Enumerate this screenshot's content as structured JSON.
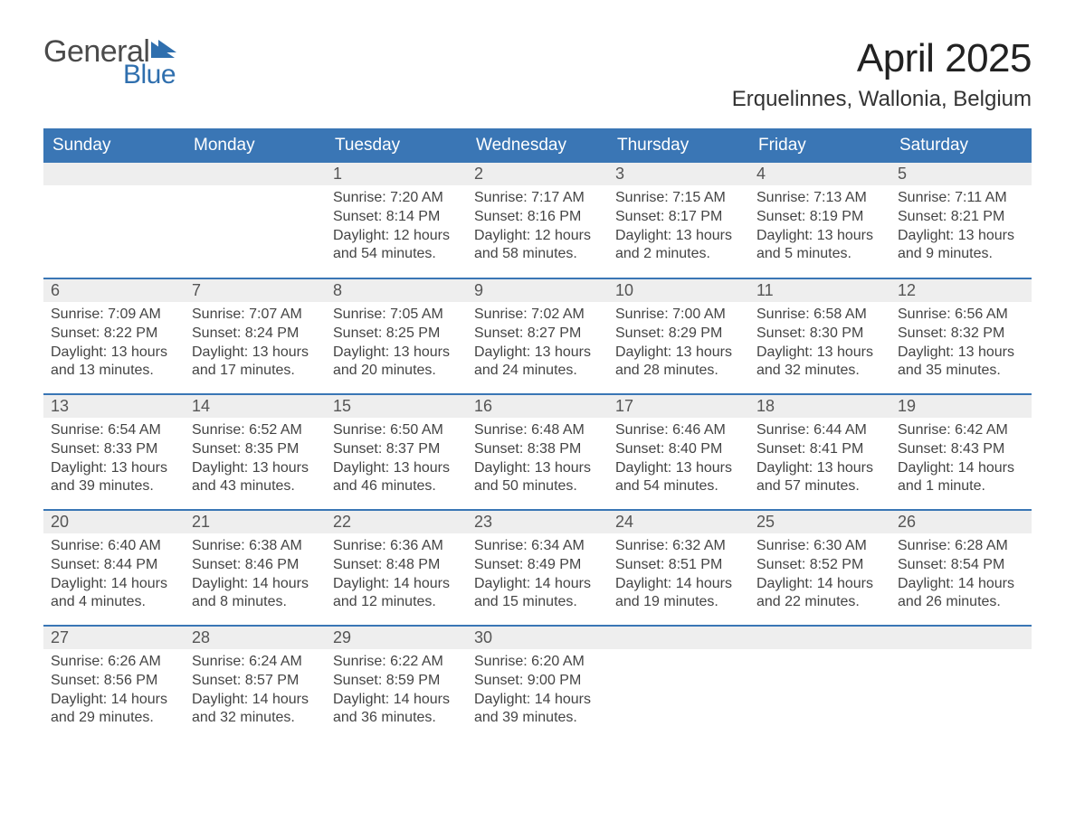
{
  "logo": {
    "word1": "General",
    "word2": "Blue",
    "flag_color": "#2f6fae"
  },
  "title": "April 2025",
  "location": "Erquelinnes, Wallonia, Belgium",
  "colors": {
    "header_bg": "#3a76b5",
    "header_text": "#ffffff",
    "daynum_bg": "#eeeeee",
    "row_divider": "#3a76b5",
    "body_text": "#444444"
  },
  "typography": {
    "title_fontsize": 44,
    "location_fontsize": 24,
    "header_fontsize": 19,
    "daynum_fontsize": 18,
    "body_fontsize": 16
  },
  "day_headers": [
    "Sunday",
    "Monday",
    "Tuesday",
    "Wednesday",
    "Thursday",
    "Friday",
    "Saturday"
  ],
  "weeks": [
    [
      null,
      null,
      {
        "n": "1",
        "sunrise": "Sunrise: 7:20 AM",
        "sunset": "Sunset: 8:14 PM",
        "daylight": "Daylight: 12 hours and 54 minutes."
      },
      {
        "n": "2",
        "sunrise": "Sunrise: 7:17 AM",
        "sunset": "Sunset: 8:16 PM",
        "daylight": "Daylight: 12 hours and 58 minutes."
      },
      {
        "n": "3",
        "sunrise": "Sunrise: 7:15 AM",
        "sunset": "Sunset: 8:17 PM",
        "daylight": "Daylight: 13 hours and 2 minutes."
      },
      {
        "n": "4",
        "sunrise": "Sunrise: 7:13 AM",
        "sunset": "Sunset: 8:19 PM",
        "daylight": "Daylight: 13 hours and 5 minutes."
      },
      {
        "n": "5",
        "sunrise": "Sunrise: 7:11 AM",
        "sunset": "Sunset: 8:21 PM",
        "daylight": "Daylight: 13 hours and 9 minutes."
      }
    ],
    [
      {
        "n": "6",
        "sunrise": "Sunrise: 7:09 AM",
        "sunset": "Sunset: 8:22 PM",
        "daylight": "Daylight: 13 hours and 13 minutes."
      },
      {
        "n": "7",
        "sunrise": "Sunrise: 7:07 AM",
        "sunset": "Sunset: 8:24 PM",
        "daylight": "Daylight: 13 hours and 17 minutes."
      },
      {
        "n": "8",
        "sunrise": "Sunrise: 7:05 AM",
        "sunset": "Sunset: 8:25 PM",
        "daylight": "Daylight: 13 hours and 20 minutes."
      },
      {
        "n": "9",
        "sunrise": "Sunrise: 7:02 AM",
        "sunset": "Sunset: 8:27 PM",
        "daylight": "Daylight: 13 hours and 24 minutes."
      },
      {
        "n": "10",
        "sunrise": "Sunrise: 7:00 AM",
        "sunset": "Sunset: 8:29 PM",
        "daylight": "Daylight: 13 hours and 28 minutes."
      },
      {
        "n": "11",
        "sunrise": "Sunrise: 6:58 AM",
        "sunset": "Sunset: 8:30 PM",
        "daylight": "Daylight: 13 hours and 32 minutes."
      },
      {
        "n": "12",
        "sunrise": "Sunrise: 6:56 AM",
        "sunset": "Sunset: 8:32 PM",
        "daylight": "Daylight: 13 hours and 35 minutes."
      }
    ],
    [
      {
        "n": "13",
        "sunrise": "Sunrise: 6:54 AM",
        "sunset": "Sunset: 8:33 PM",
        "daylight": "Daylight: 13 hours and 39 minutes."
      },
      {
        "n": "14",
        "sunrise": "Sunrise: 6:52 AM",
        "sunset": "Sunset: 8:35 PM",
        "daylight": "Daylight: 13 hours and 43 minutes."
      },
      {
        "n": "15",
        "sunrise": "Sunrise: 6:50 AM",
        "sunset": "Sunset: 8:37 PM",
        "daylight": "Daylight: 13 hours and 46 minutes."
      },
      {
        "n": "16",
        "sunrise": "Sunrise: 6:48 AM",
        "sunset": "Sunset: 8:38 PM",
        "daylight": "Daylight: 13 hours and 50 minutes."
      },
      {
        "n": "17",
        "sunrise": "Sunrise: 6:46 AM",
        "sunset": "Sunset: 8:40 PM",
        "daylight": "Daylight: 13 hours and 54 minutes."
      },
      {
        "n": "18",
        "sunrise": "Sunrise: 6:44 AM",
        "sunset": "Sunset: 8:41 PM",
        "daylight": "Daylight: 13 hours and 57 minutes."
      },
      {
        "n": "19",
        "sunrise": "Sunrise: 6:42 AM",
        "sunset": "Sunset: 8:43 PM",
        "daylight": "Daylight: 14 hours and 1 minute."
      }
    ],
    [
      {
        "n": "20",
        "sunrise": "Sunrise: 6:40 AM",
        "sunset": "Sunset: 8:44 PM",
        "daylight": "Daylight: 14 hours and 4 minutes."
      },
      {
        "n": "21",
        "sunrise": "Sunrise: 6:38 AM",
        "sunset": "Sunset: 8:46 PM",
        "daylight": "Daylight: 14 hours and 8 minutes."
      },
      {
        "n": "22",
        "sunrise": "Sunrise: 6:36 AM",
        "sunset": "Sunset: 8:48 PM",
        "daylight": "Daylight: 14 hours and 12 minutes."
      },
      {
        "n": "23",
        "sunrise": "Sunrise: 6:34 AM",
        "sunset": "Sunset: 8:49 PM",
        "daylight": "Daylight: 14 hours and 15 minutes."
      },
      {
        "n": "24",
        "sunrise": "Sunrise: 6:32 AM",
        "sunset": "Sunset: 8:51 PM",
        "daylight": "Daylight: 14 hours and 19 minutes."
      },
      {
        "n": "25",
        "sunrise": "Sunrise: 6:30 AM",
        "sunset": "Sunset: 8:52 PM",
        "daylight": "Daylight: 14 hours and 22 minutes."
      },
      {
        "n": "26",
        "sunrise": "Sunrise: 6:28 AM",
        "sunset": "Sunset: 8:54 PM",
        "daylight": "Daylight: 14 hours and 26 minutes."
      }
    ],
    [
      {
        "n": "27",
        "sunrise": "Sunrise: 6:26 AM",
        "sunset": "Sunset: 8:56 PM",
        "daylight": "Daylight: 14 hours and 29 minutes."
      },
      {
        "n": "28",
        "sunrise": "Sunrise: 6:24 AM",
        "sunset": "Sunset: 8:57 PM",
        "daylight": "Daylight: 14 hours and 32 minutes."
      },
      {
        "n": "29",
        "sunrise": "Sunrise: 6:22 AM",
        "sunset": "Sunset: 8:59 PM",
        "daylight": "Daylight: 14 hours and 36 minutes."
      },
      {
        "n": "30",
        "sunrise": "Sunrise: 6:20 AM",
        "sunset": "Sunset: 9:00 PM",
        "daylight": "Daylight: 14 hours and 39 minutes."
      },
      null,
      null,
      null
    ]
  ]
}
